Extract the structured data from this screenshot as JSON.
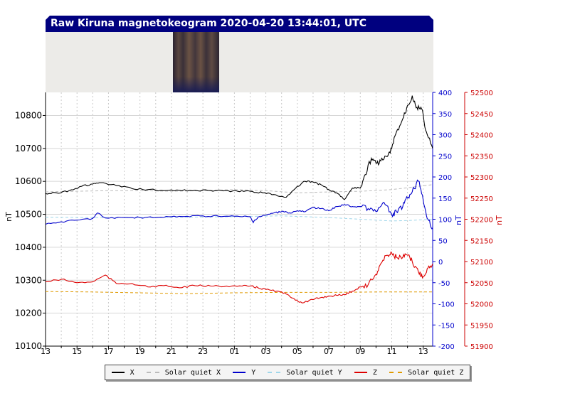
{
  "title": "Raw Kiruna magnetokeogram 2020-04-20 13:44:01, UTC",
  "chart_data": {
    "type": "line",
    "title": "",
    "xlabel": "",
    "ylabel_left": "nT",
    "ylabel_right1": "nT",
    "ylabel_right2": "nT",
    "x_tick_labels": [
      "13",
      "15",
      "17",
      "19",
      "21",
      "23",
      "01",
      "03",
      "05",
      "07",
      "09",
      "11",
      "13"
    ],
    "x_range_hours": [
      0,
      24.6
    ],
    "y_left_range": [
      10100,
      10870
    ],
    "y_left_ticks": [
      10100,
      10200,
      10300,
      10400,
      10500,
      10600,
      10700,
      10800
    ],
    "y_right1_range": [
      -200,
      400
    ],
    "y_right1_ticks": [
      -200,
      -150,
      -100,
      -50,
      0,
      50,
      100,
      150,
      200,
      250,
      300,
      350,
      400
    ],
    "y_right2_range": [
      51900,
      52500
    ],
    "y_right2_ticks": [
      51900,
      51950,
      52000,
      52050,
      52100,
      52150,
      52200,
      52250,
      52300,
      52350,
      52400,
      52450,
      52500
    ],
    "grid": true,
    "legend_position": "bottom",
    "colors": {
      "X": "#000000",
      "quiet_X": "#bbbbbb",
      "Y": "#0000cc",
      "quiet_Y": "#9fd6ea",
      "Z": "#dd0000",
      "quiet_Z": "#e09a00",
      "axis_left": "#000000",
      "axis_right1": "#0000cc",
      "axis_right2": "#cc0000"
    },
    "series": [
      {
        "name": "X",
        "axis": "left",
        "color": "#000000",
        "x": [
          0,
          0.7,
          1.5,
          2.3,
          3,
          3.5,
          4.5,
          5.5,
          6.5,
          7.5,
          8.5,
          9.5,
          10.5,
          11.3,
          12.2,
          13,
          13.8,
          14.5,
          15.3,
          16,
          16.5,
          17,
          17.5,
          18,
          18.5,
          19,
          19.5,
          20,
          20.3,
          20.7,
          21,
          21.3,
          21.7,
          22,
          22.3,
          22.7,
          23,
          23.3,
          23.6,
          23.9,
          24.2,
          24.6
        ],
        "y": [
          10563,
          10565,
          10572,
          10585,
          10592,
          10596,
          10587,
          10578,
          10575,
          10572,
          10573,
          10573,
          10572,
          10571,
          10570,
          10570,
          10565,
          10560,
          10552,
          10585,
          10600,
          10598,
          10590,
          10575,
          10565,
          10545,
          10580,
          10580,
          10620,
          10670,
          10655,
          10662,
          10675,
          10700,
          10750,
          10790,
          10830,
          10860,
          10825,
          10820,
          10750,
          10700
        ]
      },
      {
        "name": "Solar quiet X",
        "axis": "left",
        "color": "#bbbbbb",
        "dashed": true,
        "x": [
          0,
          2,
          4,
          6,
          8,
          10,
          12,
          14,
          16,
          18,
          20,
          22,
          24.6
        ],
        "y": [
          10568,
          10570,
          10572,
          10572,
          10570,
          10572,
          10575,
          10572,
          10565,
          10568,
          10570,
          10575,
          10590
        ]
      },
      {
        "name": "Y",
        "axis": "right1",
        "color": "#0000cc",
        "x": [
          0,
          1,
          2,
          3,
          3.3,
          3.8,
          5,
          6,
          7,
          8,
          9,
          10,
          11,
          12,
          13,
          13.2,
          13.5,
          14,
          14.5,
          15,
          15.5,
          16,
          16.5,
          17,
          17.5,
          18,
          18.5,
          19,
          19.5,
          20,
          20.5,
          21,
          21.5,
          22,
          22.3,
          22.7,
          23,
          23.3,
          23.7,
          24,
          24.3,
          24.6
        ],
        "y": [
          88,
          94,
          98,
          102,
          115,
          103,
          104,
          104,
          104,
          106,
          107,
          108,
          107,
          107,
          106,
          92,
          105,
          110,
          115,
          118,
          115,
          120,
          118,
          128,
          125,
          120,
          130,
          135,
          130,
          130,
          125,
          118,
          140,
          110,
          118,
          130,
          150,
          165,
          190,
          145,
          100,
          80
        ]
      },
      {
        "name": "Solar quiet Y",
        "axis": "right1",
        "color": "#9fd6ea",
        "dashed": true,
        "x": [
          0,
          3,
          6,
          9,
          12,
          15,
          16.5,
          18,
          20,
          21,
          22,
          23,
          24.6
        ],
        "y": [
          105,
          104,
          104,
          105,
          106,
          108,
          106,
          104,
          100,
          98,
          96,
          97,
          100
        ]
      },
      {
        "name": "Z",
        "axis": "right2",
        "color": "#dd0000",
        "x": [
          0,
          1,
          2,
          3,
          3.8,
          4.5,
          5.5,
          6.5,
          7.5,
          8.5,
          9.5,
          10.5,
          11.5,
          12.5,
          13,
          13.5,
          14,
          14.7,
          15.3,
          15.8,
          16.3,
          17,
          17.5,
          18,
          18.5,
          19,
          19.5,
          20,
          20.5,
          21,
          21.3,
          21.7,
          22,
          22.3,
          22.7,
          23,
          23.3,
          23.7,
          24,
          24.3,
          24.6
        ],
        "y": [
          52052,
          52058,
          52050,
          52052,
          52068,
          52048,
          52048,
          52040,
          52043,
          52038,
          52043,
          52042,
          52042,
          52042,
          52042,
          52038,
          52034,
          52030,
          52023,
          52012,
          52002,
          52010,
          52015,
          52018,
          52020,
          52022,
          52030,
          52040,
          52045,
          52070,
          52095,
          52115,
          52120,
          52110,
          52110,
          52115,
          52100,
          52075,
          52065,
          52085,
          52095
        ]
      },
      {
        "name": "Solar quiet Z",
        "axis": "right2",
        "color": "#e09a00",
        "dashed": true,
        "x": [
          0,
          3,
          6,
          9,
          12,
          15,
          18,
          21,
          24.6
        ],
        "y": [
          52029,
          52028,
          52026,
          52024,
          52026,
          52027,
          52027,
          52028,
          52028
        ]
      }
    ]
  },
  "legend": [
    {
      "label": "X",
      "color": "#000000",
      "dashed": false
    },
    {
      "label": "Solar quiet X",
      "color": "#bbbbbb",
      "dashed": true
    },
    {
      "label": "Y",
      "color": "#0000cc",
      "dashed": false
    },
    {
      "label": "Solar quiet Y",
      "color": "#9fd6ea",
      "dashed": true
    },
    {
      "label": "Z",
      "color": "#dd0000",
      "dashed": false
    },
    {
      "label": "Solar quiet Z",
      "color": "#e09a00",
      "dashed": true
    }
  ]
}
